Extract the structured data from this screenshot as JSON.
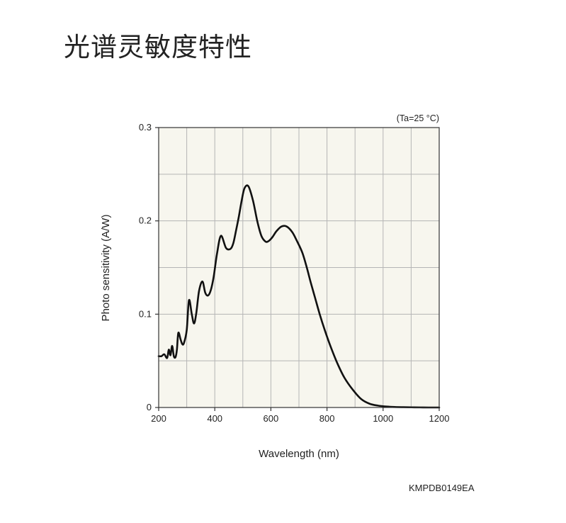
{
  "page": {
    "title": "光谱灵敏度特性",
    "doc_code": "KMPDB0149EA"
  },
  "chart_data": {
    "type": "line",
    "condition": "(Ta=25 °C)",
    "xlabel": "Wavelength (nm)",
    "ylabel": "Photo sensitivity (A/W)",
    "xlim": [
      200,
      1200
    ],
    "ylim": [
      0,
      0.3
    ],
    "xticks": [
      200,
      400,
      600,
      800,
      1000,
      1200
    ],
    "xtick_labels": [
      "200",
      "400",
      "600",
      "800",
      "1000",
      "1200"
    ],
    "yticks": [
      0,
      0.1,
      0.2,
      0.3
    ],
    "ytick_labels": [
      "0",
      "0.1",
      "0.2",
      "0.3"
    ],
    "grid": true,
    "plot_background": "#f7f6ee",
    "line_color": "#111111",
    "grid_color": "#b5b5b5",
    "series": [
      {
        "x": [
          200,
          210,
          220,
          230,
          236,
          242,
          248,
          254,
          260,
          265,
          270,
          278,
          284,
          290,
          300,
          308,
          318,
          326,
          334,
          344,
          356,
          366,
          376,
          386,
          396,
          408,
          422,
          440,
          456,
          466,
          476,
          486,
          496,
          506,
          520,
          536,
          552,
          566,
          580,
          590,
          604,
          620,
          638,
          656,
          676,
          692,
          712,
          728,
          742,
          758,
          774,
          792,
          812,
          836,
          862,
          892,
          922,
          952,
          982,
          1012,
          1042,
          1072,
          1102,
          1132,
          1162,
          1192,
          1200
        ],
        "y": [
          0.055,
          0.055,
          0.057,
          0.053,
          0.062,
          0.056,
          0.066,
          0.055,
          0.054,
          0.062,
          0.08,
          0.073,
          0.068,
          0.069,
          0.083,
          0.115,
          0.1,
          0.09,
          0.101,
          0.125,
          0.135,
          0.123,
          0.12,
          0.126,
          0.14,
          0.165,
          0.184,
          0.171,
          0.17,
          0.176,
          0.19,
          0.205,
          0.222,
          0.235,
          0.237,
          0.222,
          0.199,
          0.184,
          0.178,
          0.178,
          0.182,
          0.189,
          0.194,
          0.194,
          0.188,
          0.179,
          0.166,
          0.15,
          0.134,
          0.117,
          0.1,
          0.083,
          0.066,
          0.048,
          0.032,
          0.019,
          0.009,
          0.004,
          0.002,
          0.001,
          0.0005,
          0.0003,
          0.0002,
          0.0001,
          0,
          0,
          0
        ]
      }
    ]
  }
}
